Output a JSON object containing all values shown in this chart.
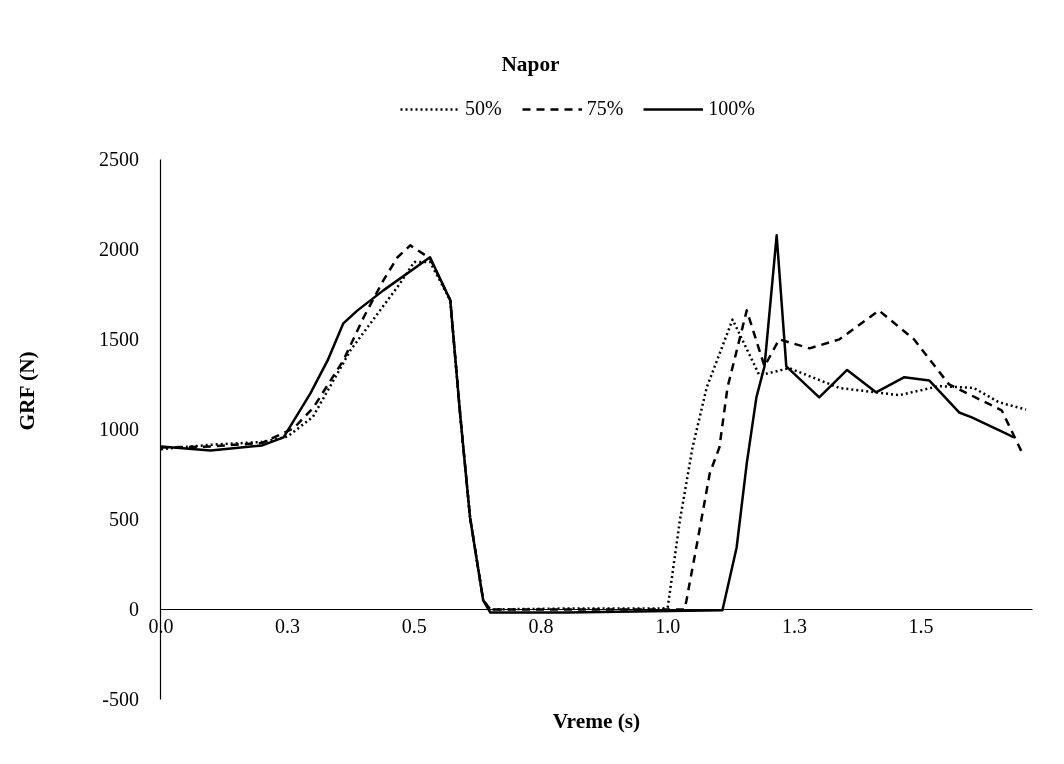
{
  "chart_data": {
    "type": "line",
    "xlabel": "Vreme (s)",
    "ylabel": "GRF (N)",
    "legend_title": "Napor",
    "legend": "top",
    "xlim": [
      0,
      1.72
    ],
    "ylim": [
      -500,
      2500
    ],
    "xticks": [
      {
        "value": 0,
        "label": "0.0"
      },
      {
        "value": 0.25,
        "label": "0.3"
      },
      {
        "value": 0.5,
        "label": "0.5"
      },
      {
        "value": 0.75,
        "label": "0.8"
      },
      {
        "value": 1.0,
        "label": "1.0"
      },
      {
        "value": 1.25,
        "label": "1.3"
      },
      {
        "value": 1.5,
        "label": "1.5"
      }
    ],
    "yticks": [
      -500,
      0,
      500,
      1000,
      1500,
      2000,
      2500
    ],
    "grid": false,
    "series": [
      {
        "name": "50%",
        "color": "#000000",
        "line_style": "dotted",
        "x": [
          0,
          0.1,
          0.2,
          0.25,
          0.3,
          0.374,
          0.472,
          0.5,
          0.531,
          0.571,
          0.591,
          0.61,
          0.636,
          0.65,
          0.8,
          0.99,
          1.0,
          1.024,
          1.049,
          1.077,
          1.128,
          1.181,
          1.24,
          1.339,
          1.457,
          1.535,
          1.604,
          1.654,
          1.707
        ],
        "values": [
          890,
          915,
          930,
          960,
          1070,
          1439,
          1811,
          1930,
          1930,
          1717,
          1067,
          511,
          50,
          0,
          5,
          5,
          11,
          494,
          900,
          1233,
          1610,
          1300,
          1340,
          1230,
          1190,
          1240,
          1230,
          1150,
          1110
        ]
      },
      {
        "name": "75%",
        "color": "#000000",
        "line_style": "dashed",
        "x": [
          0,
          0.1,
          0.2,
          0.262,
          0.301,
          0.36,
          0.4,
          0.439,
          0.467,
          0.492,
          0.531,
          0.571,
          0.591,
          0.61,
          0.636,
          0.65,
          0.8,
          1.033,
          1.037,
          1.059,
          1.083,
          1.102,
          1.118,
          1.156,
          1.191,
          1.22,
          1.28,
          1.339,
          1.417,
          1.486,
          1.555,
          1.659,
          1.699
        ],
        "values": [
          900,
          905,
          925,
          1006,
          1122,
          1383,
          1622,
          1828,
          1956,
          2022,
          1950,
          1717,
          1067,
          511,
          50,
          0,
          0,
          0,
          50,
          383,
          756,
          900,
          1233,
          1661,
          1350,
          1500,
          1450,
          1500,
          1660,
          1500,
          1250,
          1106,
          872
        ]
      },
      {
        "name": "100%",
        "color": "#000000",
        "line_style": "solid",
        "x": [
          0,
          0.098,
          0.2,
          0.242,
          0.295,
          0.329,
          0.36,
          0.388,
          0.439,
          0.531,
          0.571,
          0.591,
          0.61,
          0.636,
          0.65,
          0.8,
          1.108,
          1.136,
          1.156,
          1.175,
          1.191,
          1.215,
          1.234,
          1.299,
          1.354,
          1.411,
          1.467,
          1.516,
          1.575,
          1.6,
          1.667,
          1.683
        ],
        "values": [
          905,
          883,
          911,
          956,
          1200,
          1383,
          1589,
          1661,
          1772,
          1956,
          1717,
          1067,
          511,
          50,
          -17,
          -17,
          -5,
          344,
          811,
          1178,
          1350,
          2078,
          1350,
          1178,
          1330,
          1206,
          1290,
          1272,
          1094,
          1067,
          978,
          956
        ]
      }
    ]
  }
}
